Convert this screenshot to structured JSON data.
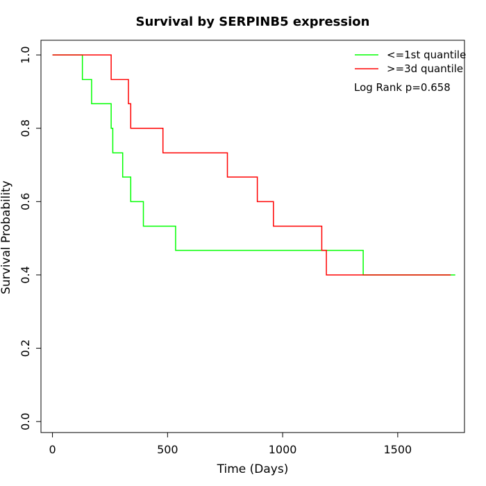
{
  "chart_data": {
    "type": "line",
    "title": "Survival by SERPINB5 expression",
    "xlabel": "Time (Days)",
    "ylabel": "Survival Probability",
    "xlim": [
      -50,
      1790
    ],
    "ylim": [
      -0.03,
      1.04
    ],
    "xticks": [
      0,
      500,
      1000,
      1500
    ],
    "yticks": [
      0.0,
      0.2,
      0.4,
      0.6,
      0.8,
      1.0
    ],
    "xtick_labels": [
      "0",
      "500",
      "1000",
      "1500"
    ],
    "ytick_labels": [
      "0.0",
      "0.2",
      "0.4",
      "0.6",
      "0.8",
      "1.0"
    ],
    "annotation": "Log Rank p=0.658",
    "legend_position": "top-right",
    "series": [
      {
        "name": "<=1st quantile",
        "color": "#00ff00",
        "step_x": [
          0,
          130,
          170,
          255,
          262,
          305,
          340,
          395,
          535,
          1350,
          1350,
          1750
        ],
        "step_y": [
          1.0,
          0.933,
          0.867,
          0.8,
          0.733,
          0.667,
          0.6,
          0.533,
          0.467,
          0.4,
          0.4,
          0.4
        ]
      },
      {
        "name": ">=3d quantile",
        "color": "#ff0000",
        "step_x": [
          0,
          255,
          330,
          340,
          480,
          760,
          890,
          960,
          1170,
          1190,
          1730
        ],
        "step_y": [
          1.0,
          0.933,
          0.867,
          0.8,
          0.733,
          0.667,
          0.6,
          0.533,
          0.467,
          0.4,
          0.4
        ]
      }
    ]
  }
}
